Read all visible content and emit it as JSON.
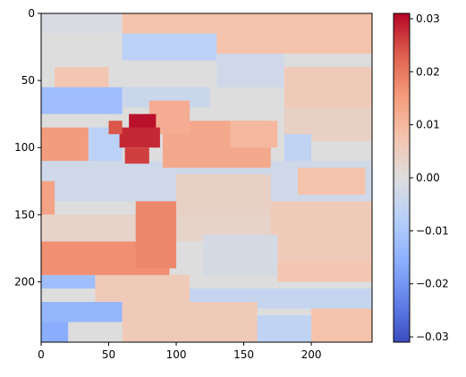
{
  "chart_data": {
    "type": "heatmap",
    "title": "",
    "xlabel": "",
    "ylabel": "",
    "colormap": "coolwarm",
    "image_extent": {
      "x": [
        0,
        245
      ],
      "y": [
        0,
        245
      ]
    },
    "x_ticks": [
      "0",
      "50",
      "100",
      "150",
      "200"
    ],
    "y_ticks": [
      "0",
      "50",
      "100",
      "150",
      "200"
    ],
    "colorbar": {
      "vmin": -0.031,
      "vmax": 0.031,
      "ticks": [
        "0.03",
        "0.02",
        "0.01",
        "0.00",
        "−0.01",
        "−0.02",
        "−0.03"
      ],
      "tick_values": [
        0.03,
        0.02,
        0.01,
        0.0,
        -0.01,
        -0.02,
        -0.03
      ]
    },
    "regions": [
      {
        "x": [
          0,
          245
        ],
        "y": [
          0,
          245
        ],
        "value": 0.0
      },
      {
        "x": [
          50,
          250
        ],
        "y": [
          0,
          15
        ],
        "value": 0.008
      },
      {
        "x": [
          0,
          60
        ],
        "y": [
          0,
          15
        ],
        "value": -0.001
      },
      {
        "x": [
          60,
          130
        ],
        "y": [
          15,
          35
        ],
        "value": -0.007
      },
      {
        "x": [
          130,
          250
        ],
        "y": [
          15,
          30
        ],
        "value": 0.008
      },
      {
        "x": [
          130,
          180
        ],
        "y": [
          30,
          55
        ],
        "value": -0.003
      },
      {
        "x": [
          180,
          245
        ],
        "y": [
          40,
          70
        ],
        "value": 0.006
      },
      {
        "x": [
          10,
          50
        ],
        "y": [
          40,
          55
        ],
        "value": 0.007
      },
      {
        "x": [
          0,
          60
        ],
        "y": [
          55,
          75
        ],
        "value": -0.012
      },
      {
        "x": [
          60,
          125
        ],
        "y": [
          55,
          70
        ],
        "value": -0.004
      },
      {
        "x": [
          180,
          245
        ],
        "y": [
          70,
          95
        ],
        "value": 0.004
      },
      {
        "x": [
          0,
          35
        ],
        "y": [
          85,
          110
        ],
        "value": 0.015
      },
      {
        "x": [
          35,
          60
        ],
        "y": [
          85,
          110
        ],
        "value": -0.007
      },
      {
        "x": [
          0,
          245
        ],
        "y": [
          110,
          140
        ],
        "value": -0.003
      },
      {
        "x": [
          100,
          170
        ],
        "y": [
          120,
          150
        ],
        "value": 0.004
      },
      {
        "x": [
          190,
          240
        ],
        "y": [
          115,
          135
        ],
        "value": 0.008
      },
      {
        "x": [
          90,
          170
        ],
        "y": [
          80,
          115
        ],
        "value": 0.013
      },
      {
        "x": [
          80,
          110
        ],
        "y": [
          65,
          90
        ],
        "value": 0.012
      },
      {
        "x": [
          140,
          175
        ],
        "y": [
          80,
          100
        ],
        "value": 0.01
      },
      {
        "x": [
          0,
          10
        ],
        "y": [
          125,
          150
        ],
        "value": 0.014
      },
      {
        "x": [
          0,
          245
        ],
        "y": [
          150,
          170
        ],
        "value": 0.003
      },
      {
        "x": [
          170,
          245
        ],
        "y": [
          140,
          185
        ],
        "value": 0.006
      },
      {
        "x": [
          0,
          95
        ],
        "y": [
          170,
          195
        ],
        "value": 0.017
      },
      {
        "x": [
          120,
          175
        ],
        "y": [
          165,
          195
        ],
        "value": -0.002
      },
      {
        "x": [
          175,
          245
        ],
        "y": [
          185,
          200
        ],
        "value": 0.007
      },
      {
        "x": [
          0,
          40
        ],
        "y": [
          195,
          205
        ],
        "value": -0.012
      },
      {
        "x": [
          40,
          110
        ],
        "y": [
          195,
          215
        ],
        "value": 0.006
      },
      {
        "x": [
          110,
          245
        ],
        "y": [
          205,
          220
        ],
        "value": -0.005
      },
      {
        "x": [
          0,
          60
        ],
        "y": [
          215,
          230
        ],
        "value": -0.014
      },
      {
        "x": [
          60,
          160
        ],
        "y": [
          215,
          245
        ],
        "value": 0.006
      },
      {
        "x": [
          200,
          245
        ],
        "y": [
          220,
          245
        ],
        "value": 0.008
      },
      {
        "x": [
          0,
          20
        ],
        "y": [
          230,
          245
        ],
        "value": -0.016
      },
      {
        "x": [
          160,
          200
        ],
        "y": [
          225,
          245
        ],
        "value": -0.006
      },
      {
        "x": [
          70,
          100
        ],
        "y": [
          140,
          190
        ],
        "value": 0.018
      },
      {
        "x": [
          65,
          85
        ],
        "y": [
          75,
          92
        ],
        "value": 0.03
      },
      {
        "x": [
          58,
          88
        ],
        "y": [
          85,
          100
        ],
        "value": 0.028
      },
      {
        "x": [
          62,
          80
        ],
        "y": [
          100,
          112
        ],
        "value": 0.026
      },
      {
        "x": [
          50,
          60
        ],
        "y": [
          80,
          90
        ],
        "value": 0.024
      },
      {
        "x": [
          180,
          200
        ],
        "y": [
          90,
          110
        ],
        "value": -0.006
      }
    ]
  }
}
